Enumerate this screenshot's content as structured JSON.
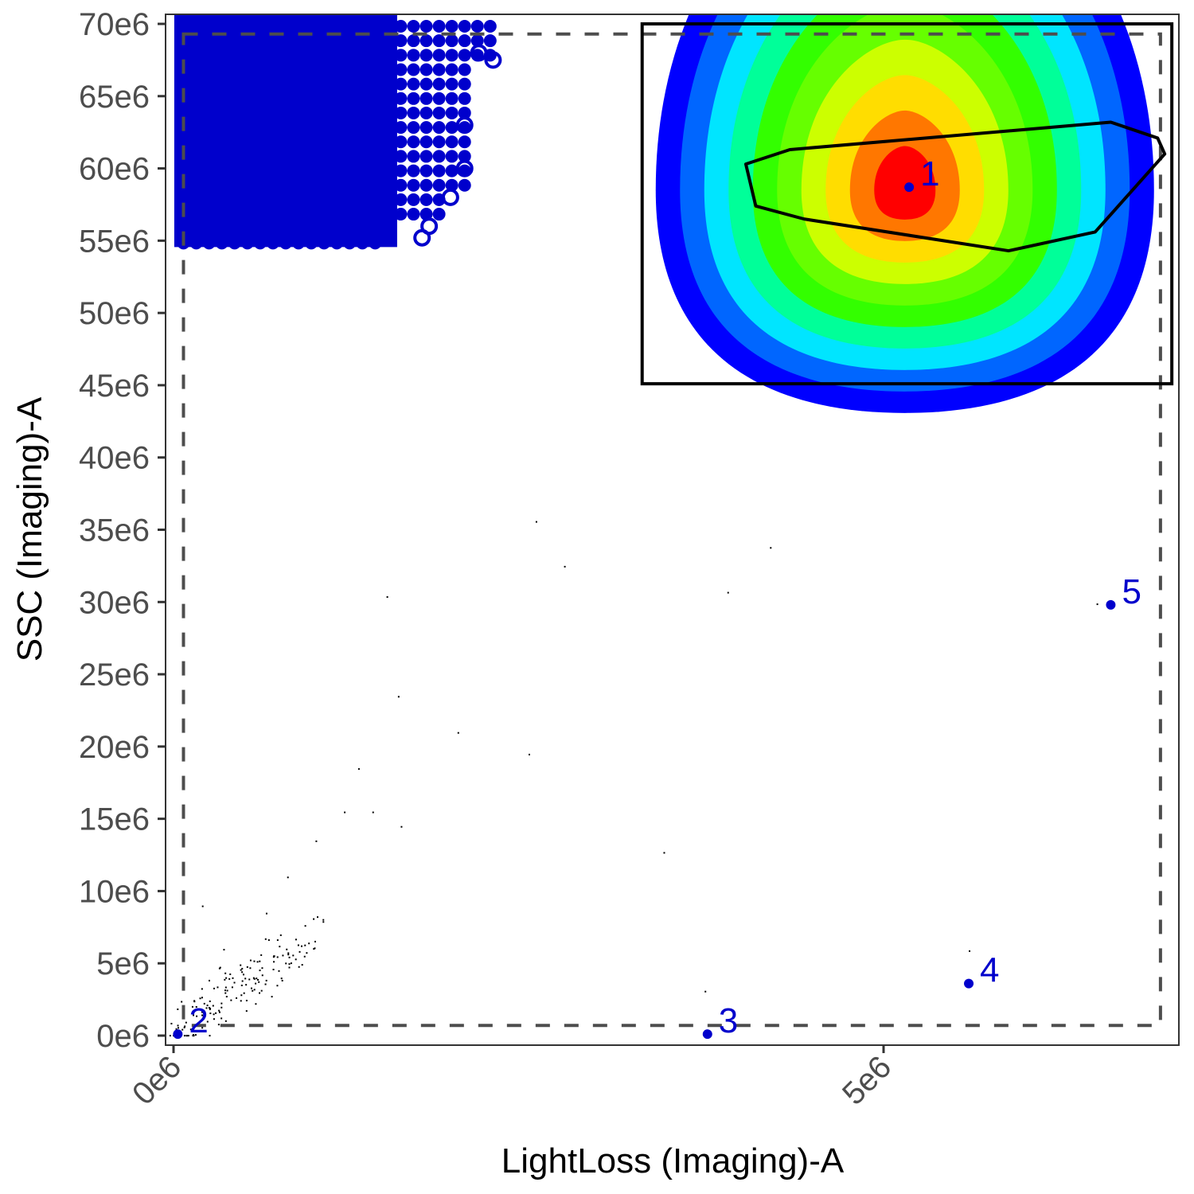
{
  "chart_data": {
    "type": "scatter",
    "title": "",
    "xlabel": "LightLoss (Imaging)-A",
    "ylabel": "SSC (Imaging)-A",
    "x_ticks": [
      {
        "value": 0,
        "label": "0e6"
      },
      {
        "value": 5000000,
        "label": "5e6"
      }
    ],
    "y_ticks": [
      {
        "value": 0,
        "label": "0e6"
      },
      {
        "value": 5000000,
        "label": "5e6"
      },
      {
        "value": 10000000,
        "label": "10e6"
      },
      {
        "value": 15000000,
        "label": "15e6"
      },
      {
        "value": 20000000,
        "label": "20e6"
      },
      {
        "value": 25000000,
        "label": "25e6"
      },
      {
        "value": 30000000,
        "label": "30e6"
      },
      {
        "value": 35000000,
        "label": "35e6"
      },
      {
        "value": 40000000,
        "label": "40e6"
      },
      {
        "value": 45000000,
        "label": "45e6"
      },
      {
        "value": 50000000,
        "label": "50e6"
      },
      {
        "value": 55000000,
        "label": "55e6"
      },
      {
        "value": 60000000,
        "label": "60e6"
      },
      {
        "value": 65000000,
        "label": "65e6"
      },
      {
        "value": 70000000,
        "label": "70e6"
      }
    ],
    "xlim": [
      -50000,
      7100000
    ],
    "ylim": [
      -700000,
      70700000
    ],
    "grid": false,
    "legend": "none",
    "population_centers": [
      {
        "label": "1",
        "x": 5180000,
        "y": 58700000
      },
      {
        "label": "2",
        "x": 30000,
        "y": 100000
      },
      {
        "label": "3",
        "x": 3760000,
        "y": 100000
      },
      {
        "label": "4",
        "x": 5600000,
        "y": 3600000
      },
      {
        "label": "5",
        "x": 6600000,
        "y": 29800000
      }
    ],
    "gates": {
      "outer_dashed_rectangle": {
        "x_min": 70000,
        "x_max": 6950000,
        "y_min": 700000,
        "y_max": 69300000
      },
      "rectangle_gate": {
        "x_min": 3300000,
        "x_max": 7030000,
        "y_min": 45100000,
        "y_max": 70000000
      },
      "polygon_gate": [
        [
          4030000,
          60300000
        ],
        [
          4340000,
          61300000
        ],
        [
          6600000,
          63200000
        ],
        [
          6930000,
          62100000
        ],
        [
          6980000,
          61000000
        ],
        [
          6490000,
          55600000
        ],
        [
          5880000,
          54300000
        ],
        [
          4440000,
          56500000
        ],
        [
          4100000,
          57400000
        ]
      ]
    },
    "density_contour": {
      "center_x": 5150000,
      "center_y": 58500000,
      "levels_colors": [
        "#0000ff",
        "#0066ff",
        "#00e5ff",
        "#00ff99",
        "#33ff00",
        "#66ff00",
        "#ccff00",
        "#ffdd00",
        "#ff7700",
        "#ff0000"
      ]
    },
    "saturated_cluster": {
      "x_range": [
        50000,
        2300000
      ],
      "y_range": [
        55000000,
        70000000
      ],
      "color": "#0000cc",
      "marker": "circle"
    },
    "noise_points": [
      [
        280000,
        1200000
      ],
      [
        400000,
        2500000
      ],
      [
        500000,
        4000000
      ],
      [
        600000,
        3000000
      ],
      [
        700000,
        5500000
      ],
      [
        750000,
        7000000
      ],
      [
        350000,
        6000000
      ],
      [
        200000,
        9000000
      ],
      [
        650000,
        8500000
      ],
      [
        800000,
        11000000
      ],
      [
        1000000,
        13500000
      ],
      [
        1200000,
        15500000
      ],
      [
        1400000,
        15500000
      ],
      [
        1600000,
        14500000
      ],
      [
        1300000,
        18500000
      ],
      [
        1580000,
        23500000
      ],
      [
        1500000,
        30400000
      ],
      [
        2000000,
        21000000
      ],
      [
        2500000,
        19500000
      ],
      [
        2550000,
        35600000
      ],
      [
        2750000,
        32500000
      ],
      [
        3450000,
        12700000
      ],
      [
        3900000,
        30700000
      ],
      [
        4200000,
        33800000
      ],
      [
        5600000,
        5900000
      ],
      [
        6500000,
        29900000
      ],
      [
        3740000,
        3100000
      ]
    ],
    "colors": {
      "population_label": "#0000cc",
      "gate_line": "#000000",
      "dashed_gate": "#4d4d4d",
      "axis_text": "#4d4d4d",
      "title_text": "#000000"
    }
  }
}
